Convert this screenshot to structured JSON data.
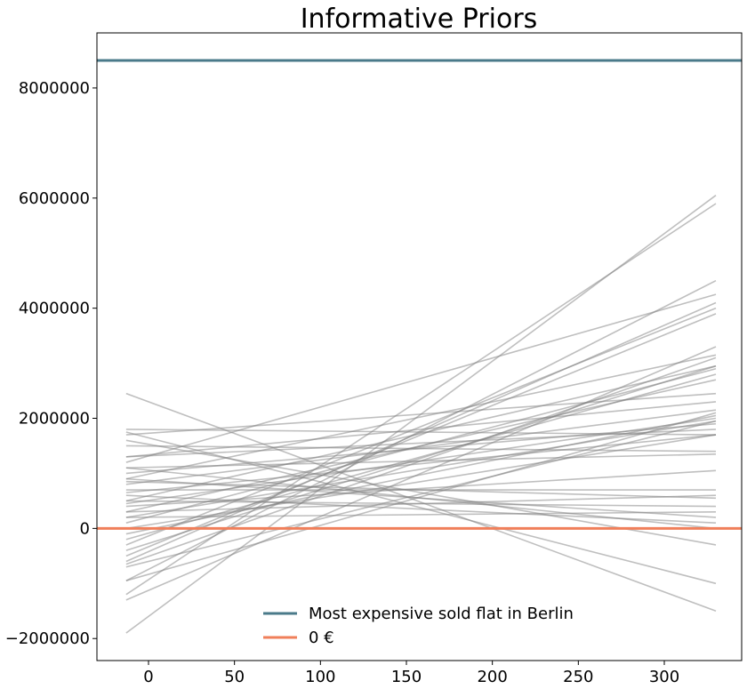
{
  "chart_data": {
    "type": "line",
    "title": "Informative Priors",
    "xlabel": "",
    "ylabel": "",
    "xlim": [
      -30,
      345
    ],
    "ylim": [
      -2400000,
      9000000
    ],
    "x_ticks": [
      0,
      50,
      100,
      150,
      200,
      250,
      300
    ],
    "y_ticks": [
      -2000000,
      0,
      2000000,
      4000000,
      6000000,
      8000000
    ],
    "x_tick_labels": [
      "0",
      "50",
      "100",
      "150",
      "200",
      "250",
      "300"
    ],
    "y_tick_labels": [
      "−2000000",
      "0",
      "2000000",
      "4000000",
      "6000000",
      "8000000"
    ],
    "grid": false,
    "legend_position": "bottom-center",
    "prior_lines_color": "#808080",
    "prior_lines_x": [
      -13,
      330
    ],
    "prior_lines": [
      [
        -1900000,
        6050000
      ],
      [
        -1200000,
        5900000
      ],
      [
        -950000,
        4500000
      ],
      [
        -600000,
        4100000
      ],
      [
        -500000,
        3900000
      ],
      [
        -300000,
        4000000
      ],
      [
        -1300000,
        3300000
      ],
      [
        -650000,
        3100000
      ],
      [
        -400000,
        2950000
      ],
      [
        -200000,
        2800000
      ],
      [
        100000,
        2900000
      ],
      [
        300000,
        2700000
      ],
      [
        500000,
        2950000
      ],
      [
        -950000,
        2100000
      ],
      [
        -100000,
        2050000
      ],
      [
        200000,
        1950000
      ],
      [
        450000,
        2000000
      ],
      [
        650000,
        1700000
      ],
      [
        800000,
        2150000
      ],
      [
        1000000,
        1900000
      ],
      [
        1300000,
        1800000
      ],
      [
        1700000,
        2450000
      ],
      [
        1200000,
        4250000
      ],
      [
        900000,
        3150000
      ],
      [
        1100000,
        1350000
      ],
      [
        1500000,
        1400000
      ],
      [
        1800000,
        1700000
      ],
      [
        2450000,
        -1500000
      ],
      [
        1750000,
        -1000000
      ],
      [
        1600000,
        -300000
      ],
      [
        1100000,
        0
      ],
      [
        850000,
        550000
      ],
      [
        700000,
        700000
      ],
      [
        500000,
        400000
      ],
      [
        300000,
        600000
      ],
      [
        200000,
        300000
      ],
      [
        600000,
        100000
      ],
      [
        900000,
        200000
      ],
      [
        1300000,
        2300000
      ],
      [
        400000,
        1050000
      ],
      [
        -700000,
        1950000
      ],
      [
        0,
        1700000
      ]
    ],
    "series": [
      {
        "name": "Most expensive sold flat in Berlin",
        "type": "hline",
        "y": 8500000,
        "color": "#4a7a8a"
      },
      {
        "name": "0 €",
        "type": "hline",
        "y": 0,
        "color": "#f07f5a"
      }
    ]
  }
}
